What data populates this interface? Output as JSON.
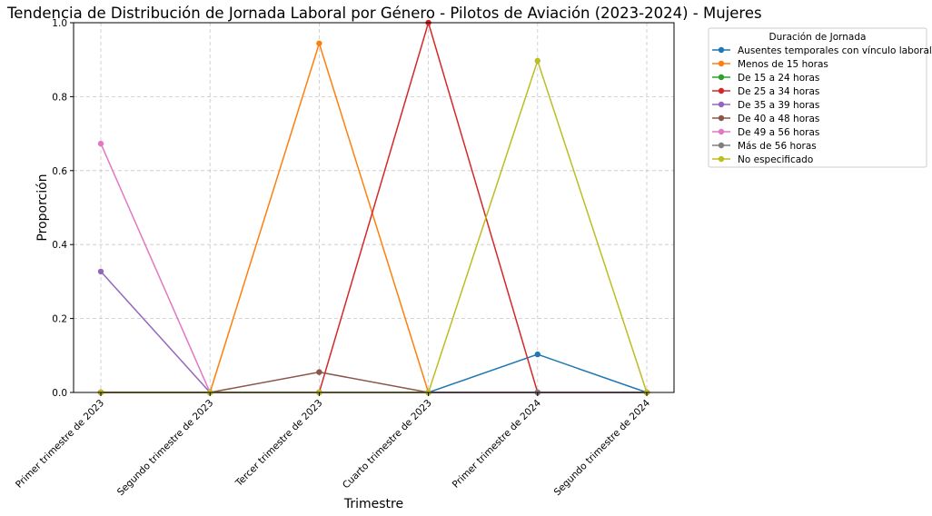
{
  "chart_data": {
    "type": "line",
    "title": "Tendencia de Distribución de Jornada Laboral por Género - Pilotos de Aviación (2023-2024) - Mujeres",
    "xlabel": "Trimestre",
    "ylabel": "Proporción",
    "ylim": [
      0,
      1.0
    ],
    "yticks": [
      "0.0",
      "0.2",
      "0.4",
      "0.6",
      "0.8",
      "1.0"
    ],
    "grid": true,
    "legend_title": "Duración de Jornada",
    "legend_position": "outside-top-right",
    "categories": [
      "Primer trimestre de 2023",
      "Segundo trimestre de 2023",
      "Tercer trimestre de 2023",
      "Cuarto trimestre de 2023",
      "Primer trimestre de 2024",
      "Segundo trimestre de 2024"
    ],
    "series": [
      {
        "name": "Ausentes temporales con vínculo laboral",
        "color": "#1f77b4",
        "values": [
          0,
          0,
          0,
          0,
          0.103,
          0
        ]
      },
      {
        "name": "Menos de 15 horas",
        "color": "#ff7f0e",
        "values": [
          0,
          0,
          0.944,
          0,
          0,
          0
        ]
      },
      {
        "name": "De 15 a 24 horas",
        "color": "#2ca02c",
        "values": [
          0,
          0,
          0,
          0,
          0,
          0
        ]
      },
      {
        "name": "De 25 a 34 horas",
        "color": "#d62728",
        "values": [
          0,
          0,
          0,
          1.0,
          0,
          0
        ]
      },
      {
        "name": "De 35 a 39 horas",
        "color": "#9467bd",
        "values": [
          0.327,
          0,
          0,
          0,
          0,
          0
        ]
      },
      {
        "name": "De 40 a 48 horas",
        "color": "#8c564b",
        "values": [
          0,
          0,
          0.055,
          0,
          0,
          0
        ]
      },
      {
        "name": "De 49 a 56 horas",
        "color": "#e377c2",
        "values": [
          0.673,
          0,
          0,
          0,
          0,
          0
        ]
      },
      {
        "name": "Más de 56 horas",
        "color": "#7f7f7f",
        "values": [
          0,
          0,
          0,
          0,
          0,
          0
        ]
      },
      {
        "name": "No especificado",
        "color": "#bcbd22",
        "values": [
          0,
          0,
          0,
          0,
          0.897,
          0
        ]
      }
    ]
  }
}
